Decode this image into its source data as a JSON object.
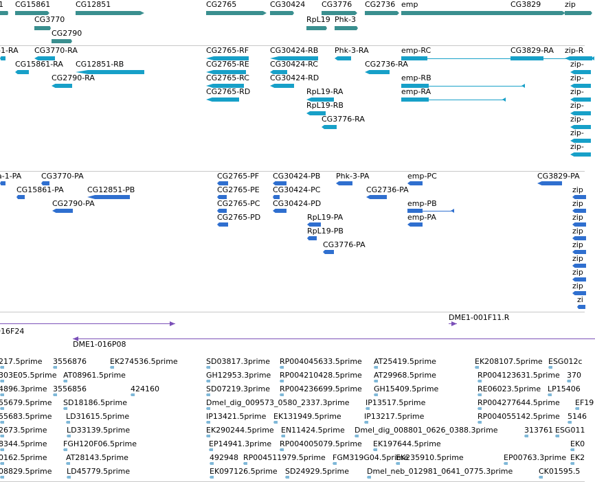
{
  "colors": {
    "gene": "#3a8f8f",
    "mrna": "#17a0c8",
    "protein": "#2f6fcf",
    "contig": "#7b50b8",
    "est": "#7fb8d8",
    "divider": "#c8c8c8"
  },
  "tracks": {
    "genes": [
      {
        "label": "-1"
      },
      {
        "label": "CG15861"
      },
      {
        "label": "CG12851"
      },
      {
        "label": "CG3770"
      },
      {
        "label": "CG2790"
      },
      {
        "label": "CG2765"
      },
      {
        "label": "CG30424"
      },
      {
        "label": "CG3776"
      },
      {
        "label": "RpL19"
      },
      {
        "label": "Phk-3"
      },
      {
        "label": "CG2736"
      },
      {
        "label": "emp"
      },
      {
        "label": "CG3829"
      },
      {
        "label": "zip"
      }
    ],
    "transcripts": [
      {
        "label": "-1-RA"
      },
      {
        "label": "CG3770-RA"
      },
      {
        "label": "CG15861-RA"
      },
      {
        "label": "CG12851-RB"
      },
      {
        "label": "CG2790-RA"
      },
      {
        "label": "CG2765-RF"
      },
      {
        "label": "CG2765-RE"
      },
      {
        "label": "CG2765-RC"
      },
      {
        "label": "CG2765-RD"
      },
      {
        "label": "CG30424-RB"
      },
      {
        "label": "CG30424-RC"
      },
      {
        "label": "CG30424-RD"
      },
      {
        "label": "RpL19-RA"
      },
      {
        "label": "RpL19-RB"
      },
      {
        "label": "CG3776-RA"
      },
      {
        "label": "Phk-3-RA"
      },
      {
        "label": "CG2736-RA"
      },
      {
        "label": "emp-RC"
      },
      {
        "label": "emp-RB"
      },
      {
        "label": "emp-RA"
      },
      {
        "label": "CG3829-RA"
      },
      {
        "label": "zip-R"
      },
      {
        "label": "zip-"
      },
      {
        "label": "zip-"
      },
      {
        "label": "zip-"
      },
      {
        "label": "zip-"
      },
      {
        "label": "zip-"
      },
      {
        "label": "zip-"
      },
      {
        "label": "zip-"
      }
    ],
    "proteins": [
      {
        "label": "a-1-PA"
      },
      {
        "label": "CG3770-PA"
      },
      {
        "label": "CG15861-PA"
      },
      {
        "label": "CG12851-PB"
      },
      {
        "label": "CG2790-PA"
      },
      {
        "label": "CG2765-PF"
      },
      {
        "label": "CG2765-PE"
      },
      {
        "label": "CG2765-PC"
      },
      {
        "label": "CG2765-PD"
      },
      {
        "label": "CG30424-PB"
      },
      {
        "label": "CG30424-PC"
      },
      {
        "label": "CG30424-PD"
      },
      {
        "label": "Phk-3-PA"
      },
      {
        "label": "CG2736-PA"
      },
      {
        "label": "RpL19-PA"
      },
      {
        "label": "RpL19-PB"
      },
      {
        "label": "CG3776-PA"
      },
      {
        "label": "emp-PC"
      },
      {
        "label": "emp-PB"
      },
      {
        "label": "emp-PA"
      },
      {
        "label": "CG3829-PA"
      },
      {
        "label": "zip"
      },
      {
        "label": "zip"
      },
      {
        "label": "zip"
      },
      {
        "label": "zip"
      },
      {
        "label": "zip"
      },
      {
        "label": "zip"
      },
      {
        "label": "zip"
      },
      {
        "label": "zip"
      },
      {
        "label": "zi"
      }
    ],
    "contigs": [
      {
        "label": "016F24"
      },
      {
        "label": "DME1-001F11.R"
      },
      {
        "label": "DME1-016P08"
      }
    ],
    "ests": [
      {
        "label": "217.5prime"
      },
      {
        "label": "3556876"
      },
      {
        "label": "EK274536.5prime"
      },
      {
        "label": "SD03817.3prime"
      },
      {
        "label": "RP004045633.5prime"
      },
      {
        "label": "AT25419.5prime"
      },
      {
        "label": "EK208107.5prime"
      },
      {
        "label": "ESG012c"
      },
      {
        "label": "303E05.5prime"
      },
      {
        "label": "AT08961.5prime"
      },
      {
        "label": "GH12953.3prime"
      },
      {
        "label": "RP004210428.5prime"
      },
      {
        "label": "AT29968.5prime"
      },
      {
        "label": "RP004123631.5prime"
      },
      {
        "label": "370"
      },
      {
        "label": "4896.3prime"
      },
      {
        "label": "3556856"
      },
      {
        "label": "424160"
      },
      {
        "label": "SD07219.3prime"
      },
      {
        "label": "RP004236699.5prime"
      },
      {
        "label": "GH15409.5prime"
      },
      {
        "label": "RE06023.5prime"
      },
      {
        "label": "LP15406"
      },
      {
        "label": "55679.5prime"
      },
      {
        "label": "SD18186.5prime"
      },
      {
        "label": "Dmel_dig_009573_0580_2337.3prime"
      },
      {
        "label": "IP13517.5prime"
      },
      {
        "label": "RP004277644.5prime"
      },
      {
        "label": "EF19"
      },
      {
        "label": "55683.5prime"
      },
      {
        "label": "LD31615.5prime"
      },
      {
        "label": "IP13421.5prime"
      },
      {
        "label": "EK131949.5prime"
      },
      {
        "label": "IP13217.5prime"
      },
      {
        "label": "RP004055142.5prime"
      },
      {
        "label": "5146"
      },
      {
        "label": "2673.5prime"
      },
      {
        "label": "LD33139.5prime"
      },
      {
        "label": "EK290244.5prime"
      },
      {
        "label": "EN11424.5prime"
      },
      {
        "label": "Dmel_dig_008801_0626_0388.3prime"
      },
      {
        "label": "313761"
      },
      {
        "label": "ESG011"
      },
      {
        "label": "8344.5prime"
      },
      {
        "label": "FGH120F06.5prime"
      },
      {
        "label": "EP14941.3prime"
      },
      {
        "label": "RP004005079.5prime"
      },
      {
        "label": "EK197644.5prime"
      },
      {
        "label": "EK0"
      },
      {
        "label": "0162.5prime"
      },
      {
        "label": "AT28143.5prime"
      },
      {
        "label": "492948"
      },
      {
        "label": "RP004511979.5prime"
      },
      {
        "label": "FGM319G04.5prime"
      },
      {
        "label": "EK235910.5prime"
      },
      {
        "label": "EP00763.3prime"
      },
      {
        "label": "EK2"
      },
      {
        "label": "08829.5prime"
      },
      {
        "label": "LD45779.5prime"
      },
      {
        "label": "EK097126.5prime"
      },
      {
        "label": "SD24929.5prime"
      },
      {
        "label": "Dmel_neb_012981_0641_0775.3prime"
      },
      {
        "label": "CK01595.5"
      }
    ]
  }
}
